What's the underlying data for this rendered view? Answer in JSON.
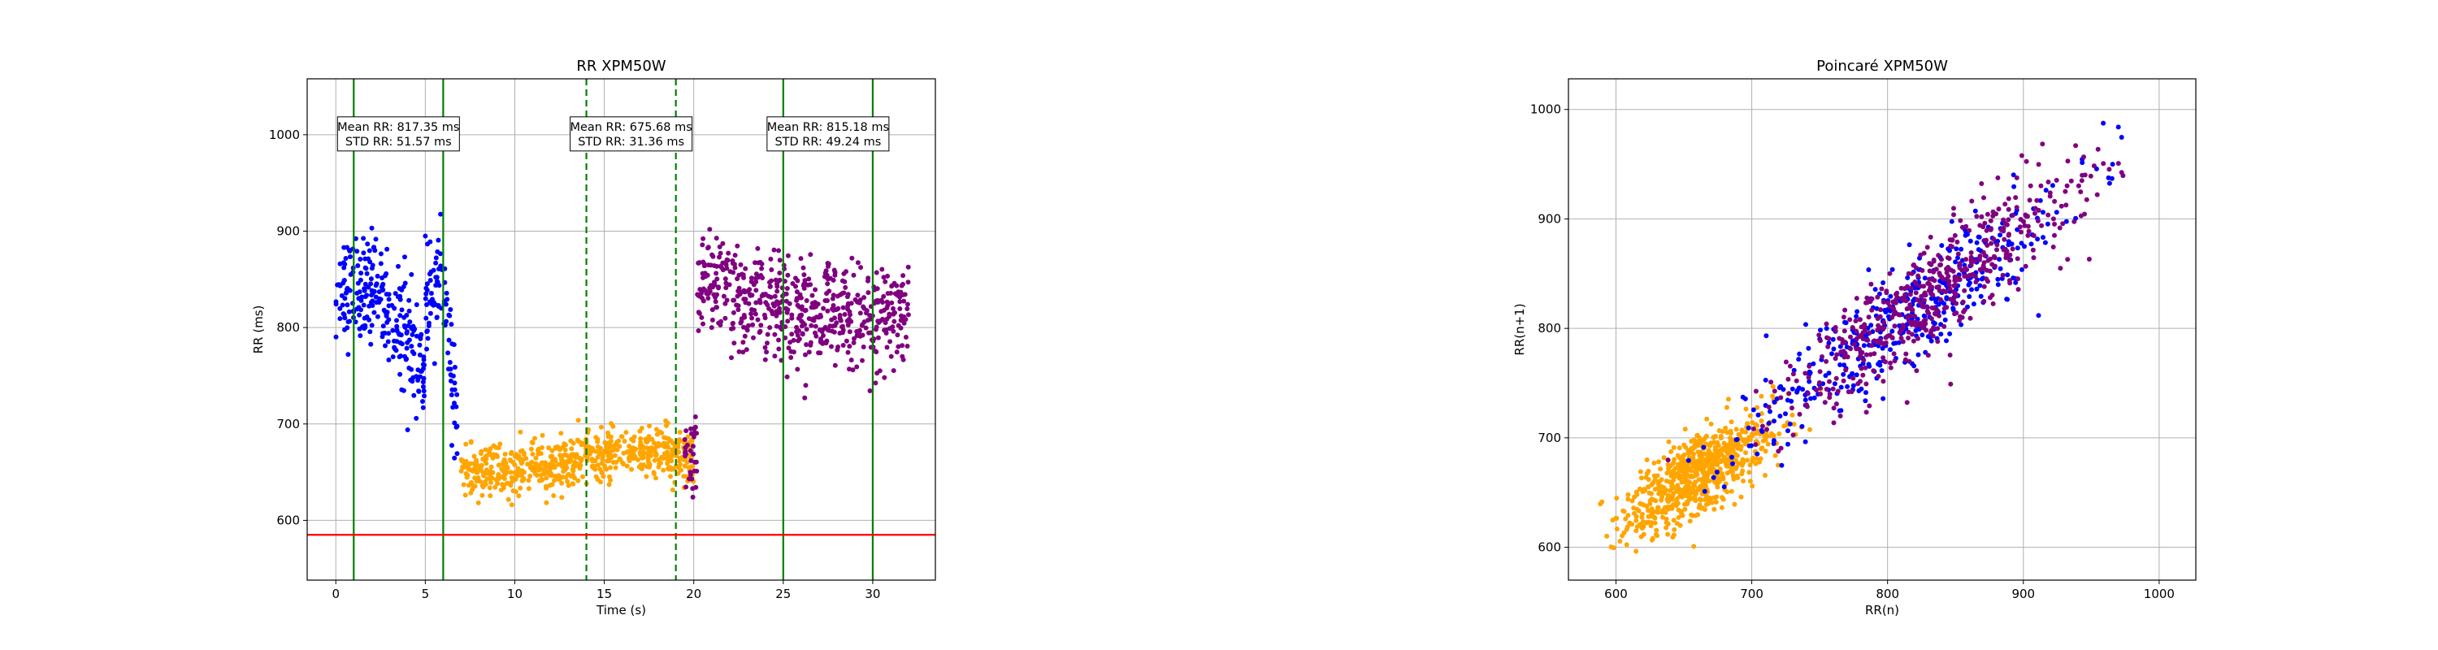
{
  "chart_data": [
    {
      "type": "scatter",
      "title": "RR XPM50W",
      "xlabel": "Time (s)",
      "ylabel": "RR (ms)",
      "xlim": [
        -1.6,
        33.5
      ],
      "ylim": [
        538,
        1058
      ],
      "xticks": [
        0,
        5,
        10,
        15,
        20,
        25,
        30
      ],
      "yticks": [
        600,
        700,
        800,
        900,
        1000
      ],
      "grid": true,
      "series": [
        {
          "color": "#0000ff",
          "x_range": [
            0,
            6.8
          ],
          "segments": [
            [
              0,
              2,
              835,
              845
            ],
            [
              2,
              4,
              845,
              790
            ],
            [
              4,
              5,
              790,
              755
            ],
            [
              5,
              6,
              820,
              845
            ],
            [
              6,
              6.8,
              845,
              700
            ]
          ],
          "spread": 50
        },
        {
          "color": "#ffa500",
          "x_range": [
            7,
            20
          ],
          "segments": [
            [
              7,
              10,
              650,
              650
            ],
            [
              10,
              13,
              650,
              660
            ],
            [
              13,
              16,
              660,
              672
            ],
            [
              16,
              20,
              672,
              668
            ]
          ],
          "spread": 24
        },
        {
          "color": "#800080",
          "x_range": [
            19.5,
            32
          ],
          "segments": [
            [
              19.5,
              20.2,
              660,
              660
            ],
            [
              20.2,
              22,
              845,
              840
            ],
            [
              22,
              26,
              830,
              815
            ],
            [
              26,
              32,
              815,
              810
            ]
          ],
          "spread": 48
        }
      ],
      "vertical_lines": [
        {
          "x": 1,
          "color": "#008000",
          "style": "solid"
        },
        {
          "x": 6,
          "color": "#008000",
          "style": "solid"
        },
        {
          "x": 14,
          "color": "#008000",
          "style": "dashed"
        },
        {
          "x": 19,
          "color": "#008000",
          "style": "dashed"
        },
        {
          "x": 25,
          "color": "#008000",
          "style": "solid"
        },
        {
          "x": 30,
          "color": "#008000",
          "style": "solid"
        }
      ],
      "horizontal_lines": [
        {
          "y": 585,
          "color": "#ff0000"
        }
      ],
      "annotations": [
        {
          "x": 3.5,
          "line1": "Mean RR: 817.35 ms",
          "line2": "STD RR: 51.57 ms"
        },
        {
          "x": 16.5,
          "line1": "Mean RR: 675.68 ms",
          "line2": "STD RR: 31.36 ms"
        },
        {
          "x": 27.5,
          "line1": "Mean RR: 815.18 ms",
          "line2": "STD RR: 49.24 ms"
        }
      ]
    },
    {
      "type": "scatter",
      "title": "Poincaré XPM50W",
      "xlabel": "RR(n)",
      "ylabel": "RR(n+1)",
      "xlim": [
        565,
        1027
      ],
      "ylim": [
        570,
        1028
      ],
      "xticks": [
        600,
        700,
        800,
        900,
        1000
      ],
      "yticks": [
        600,
        700,
        800,
        900,
        1000
      ],
      "grid": true,
      "series": [
        {
          "color": "#ffa500",
          "center": [
            660,
            665
          ],
          "range": [
            590,
            790
          ]
        },
        {
          "color": "#0000ff",
          "center": [
            815,
            812
          ],
          "range": [
            620,
            985
          ]
        },
        {
          "color": "#800080",
          "center": [
            830,
            828
          ],
          "range": [
            605,
            1005
          ]
        }
      ]
    }
  ]
}
